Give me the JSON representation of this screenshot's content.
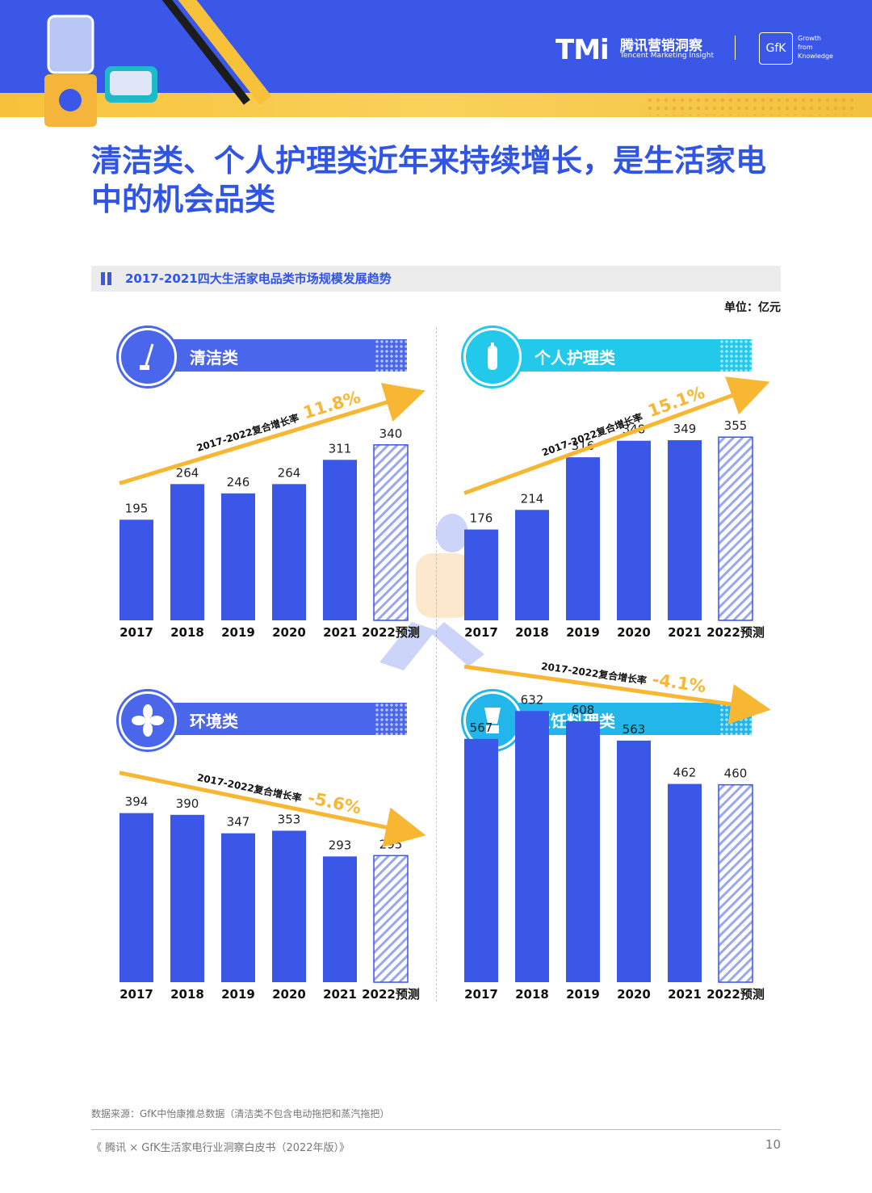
{
  "header": {
    "logo_tmi": "TMi",
    "logo_cn": "腾讯营销洞察",
    "logo_en": "Tencent Marketing Insight",
    "gfk_logo": "GfK",
    "gfk_tagline": "Growth from Knowledge"
  },
  "page_title": "清洁类、个人护理类近年来持续增长，是生活家电中的机会品类",
  "section_title": "2017-2021四大生活家电品类市场规模发展趋势",
  "unit": "单位：亿元",
  "colors": {
    "bar": "#3a57e8",
    "forecast_stripe": "#9aa6ee",
    "arrow": "#f7b733",
    "pill_clean": "#4a66ea",
    "pill_personal": "#22c9ea",
    "pill_env": "#4a66ea",
    "pill_cook": "#22b6ea"
  },
  "chart_data": [
    {
      "type": "bar",
      "title": "清洁类",
      "icon": "vacuum-icon",
      "categories": [
        "2017",
        "2018",
        "2019",
        "2020",
        "2021",
        "2022预测"
      ],
      "values": [
        195,
        264,
        246,
        264,
        311,
        340
      ],
      "forecast_index": 5,
      "cagr_label": "2017-2022复合增长率",
      "cagr_value": "11.8%",
      "trend": "up"
    },
    {
      "type": "bar",
      "title": "个人护理类",
      "icon": "toothbrush-icon",
      "categories": [
        "2017",
        "2018",
        "2019",
        "2020",
        "2021",
        "2022预测"
      ],
      "values": [
        176,
        214,
        316,
        348,
        349,
        355
      ],
      "forecast_index": 5,
      "cagr_label": "2017-2022复合增长率",
      "cagr_value": "15.1%",
      "trend": "up"
    },
    {
      "type": "bar",
      "title": "环境类",
      "icon": "fan-icon",
      "categories": [
        "2017",
        "2018",
        "2019",
        "2020",
        "2021",
        "2022预测"
      ],
      "values": [
        394,
        390,
        347,
        353,
        293,
        295
      ],
      "forecast_index": 5,
      "cagr_label": "2017-2022复合增长率",
      "cagr_value": "-5.6%",
      "trend": "down"
    },
    {
      "type": "bar",
      "title": "烹饪料理类",
      "icon": "blender-icon",
      "categories": [
        "2017",
        "2018",
        "2019",
        "2020",
        "2021",
        "2022预测"
      ],
      "values": [
        567,
        632,
        608,
        563,
        462,
        460
      ],
      "forecast_index": 5,
      "cagr_label": "2017-2022复合增长率",
      "cagr_value": "-4.1%",
      "trend": "down"
    }
  ],
  "footnote": "数据来源：GfK中怡康推总数据（清洁类不包含电动拖把和蒸汽拖把）",
  "footer_left": "《 腾讯 × GfK生活家电行业洞察白皮书（2022年版）》",
  "page_number": "10"
}
